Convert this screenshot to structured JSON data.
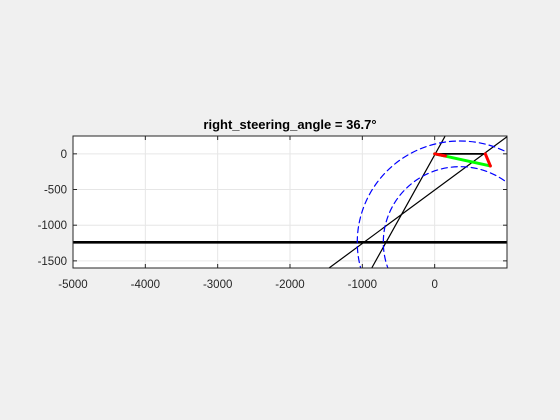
{
  "chart_data": {
    "type": "line",
    "title": "right_steering_angle = 36.7°",
    "xlabel": "",
    "ylabel": "",
    "xlim": [
      -5000,
      1000
    ],
    "ylim": [
      -1600,
      250
    ],
    "xticks": [
      -5000,
      -4000,
      -3000,
      -2000,
      -1000,
      0
    ],
    "yticks": [
      0,
      -500,
      -1000,
      -1500
    ],
    "xtick_labels": [
      "-5000",
      "-4000",
      "-3000",
      "-2000",
      "-1000",
      "0"
    ],
    "ytick_labels": [
      "0",
      "-500",
      "-1000",
      "-1500"
    ],
    "grid": true,
    "colors": {
      "figure_bg": "#f0f0f0",
      "axes_bg": "#ffffff",
      "grid": "#e6e6e6",
      "axis": "#262626",
      "black": "#000000",
      "green": "#00ff00",
      "red": "#ff0000",
      "blue": "#0000ff"
    },
    "series": [
      {
        "kind": "line",
        "color": "black",
        "width": 2.6,
        "points": [
          [
            -5000,
            -1240
          ],
          [
            1000,
            -1240
          ]
        ]
      },
      {
        "kind": "line",
        "color": "black",
        "width": 1.2,
        "points": [
          [
            -1460,
            -1600
          ],
          [
            1000,
            240
          ]
        ]
      },
      {
        "kind": "line",
        "color": "black",
        "width": 1.2,
        "points": [
          [
            -870,
            -1600
          ],
          [
            140,
            240
          ]
        ]
      },
      {
        "kind": "line",
        "color": "black",
        "width": 1.8,
        "points": [
          [
            0,
            0
          ],
          [
            700,
            0
          ]
        ]
      },
      {
        "kind": "line",
        "color": "green",
        "width": 3,
        "points": [
          [
            0,
            0
          ],
          [
            770,
            -170
          ]
        ]
      },
      {
        "kind": "line",
        "color": "red",
        "width": 3,
        "points": [
          [
            0,
            0
          ],
          [
            150,
            -30
          ]
        ]
      },
      {
        "kind": "line",
        "color": "red",
        "width": 3,
        "points": [
          [
            700,
            0
          ],
          [
            770,
            -170
          ]
        ]
      },
      {
        "kind": "circle",
        "color": "blue",
        "dashed": true,
        "width": 1.2,
        "center": [
          350,
          -1240
        ],
        "radius": 1420
      },
      {
        "kind": "circle",
        "color": "blue",
        "dashed": true,
        "width": 1.2,
        "center": [
          350,
          -1240
        ],
        "radius": 1060
      }
    ]
  }
}
